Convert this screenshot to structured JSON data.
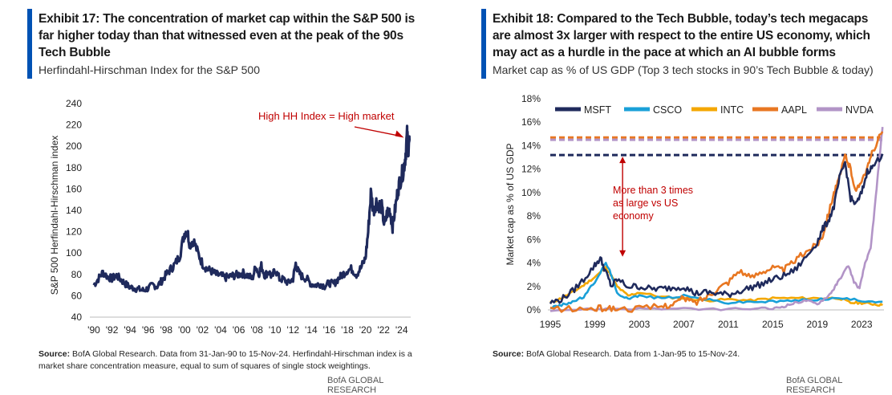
{
  "exhibit17": {
    "title": "Exhibit 17: The concentration of market cap within the S&P 500 is far higher today than that witnessed even at the peak of the 90s Tech Bubble",
    "subtitle": "Herfindahl-Hirschman Index for the S&P 500",
    "source_label": "Source:",
    "source_text": "BofA Global Research. Data from 31-Jan-90 to 15-Nov-24. Herfindahl-Hirschman index is a market share concentration measure, equal to sum of squares of single stock weightings.",
    "brand": "BofA GLOBAL RESEARCH",
    "accent_color": "#0052b4",
    "chart_data": {
      "type": "line",
      "ylabel": "S&P 500 Herfindahl-Hirschman index",
      "xlabel": "",
      "ylim": [
        40,
        240
      ],
      "yticks": [
        40,
        60,
        80,
        100,
        120,
        140,
        160,
        180,
        200,
        220,
        240
      ],
      "xlim": [
        1990,
        2025
      ],
      "xticks": [
        1990,
        1992,
        1994,
        1996,
        1998,
        2000,
        2002,
        2004,
        2006,
        2008,
        2010,
        2012,
        2014,
        2016,
        2018,
        2020,
        2022,
        2024
      ],
      "xtick_labels": [
        "'90",
        "'92",
        "'94",
        "'96",
        "'98",
        "'00",
        "'02",
        "'04",
        "'06",
        "'08",
        "'10",
        "'12",
        "'14",
        "'16",
        "'18",
        "'20",
        "'22",
        "'24"
      ],
      "grid": false,
      "annotation": {
        "text": "High HH Index = High market",
        "color": "#c00000",
        "arrow_to": [
          2024.6,
          208
        ]
      },
      "series": [
        {
          "color": "#1f2a5c",
          "x": [
            1990.0,
            1990.5,
            1991.0,
            1991.5,
            1992.0,
            1992.5,
            1993.0,
            1993.5,
            1994.0,
            1994.5,
            1995.0,
            1995.5,
            1996.0,
            1996.5,
            1997.0,
            1997.5,
            1998.0,
            1998.5,
            1999.0,
            1999.5,
            2000.0,
            2000.3,
            2000.6,
            2001.0,
            2001.5,
            2002.0,
            2002.5,
            2003.0,
            2003.5,
            2004.0,
            2004.5,
            2005.0,
            2005.5,
            2006.0,
            2006.5,
            2007.0,
            2007.5,
            2007.9,
            2008.2,
            2008.5,
            2008.9,
            2009.3,
            2009.7,
            2010.0,
            2010.5,
            2011.0,
            2011.5,
            2012.0,
            2012.3,
            2012.6,
            2013.0,
            2013.5,
            2014.0,
            2014.5,
            2015.0,
            2015.5,
            2016.0,
            2016.5,
            2017.0,
            2017.5,
            2018.0,
            2018.5,
            2019.0,
            2019.5,
            2020.0,
            2020.3,
            2020.6,
            2020.9,
            2021.2,
            2021.5,
            2021.8,
            2022.1,
            2022.4,
            2022.7,
            2023.0,
            2023.3,
            2023.6,
            2023.9,
            2024.2,
            2024.4,
            2024.6,
            2024.75,
            2024.87
          ],
          "y": [
            70,
            76,
            82,
            78,
            76,
            79,
            75,
            71,
            68,
            67,
            66,
            65,
            67,
            70,
            69,
            74,
            80,
            85,
            90,
            98,
            118,
            122,
            108,
            112,
            100,
            90,
            85,
            83,
            80,
            79,
            77,
            78,
            79,
            80,
            81,
            79,
            76,
            88,
            80,
            88,
            79,
            83,
            77,
            85,
            76,
            75,
            72,
            76,
            90,
            82,
            78,
            76,
            71,
            70,
            71,
            69,
            72,
            71,
            76,
            80,
            84,
            85,
            80,
            86,
            95,
            120,
            156,
            140,
            148,
            145,
            143,
            125,
            138,
            140,
            125,
            142,
            160,
            170,
            178,
            190,
            210,
            198,
            205
          ]
        }
      ]
    }
  },
  "exhibit18": {
    "title": "Exhibit 18: Compared to the Tech Bubble, today’s tech megacaps are almost 3x larger with respect to the entire US economy, which may act as a hurdle in the pace at which an AI bubble forms",
    "subtitle": "Market cap as % of US GDP (Top 3 tech stocks in 90’s Tech Bubble & today)",
    "source_label": "Source:",
    "source_text": "BofA Global Research. Data from 1-Jan-95 to 15-Nov-24.",
    "brand": "BofA GLOBAL RESEARCH",
    "accent_color": "#0052b4",
    "chart_data": {
      "type": "line",
      "ylabel": "Market cap as % of US GDP",
      "xlabel": "",
      "ylim": [
        0,
        18
      ],
      "yticks": [
        0,
        2,
        4,
        6,
        8,
        10,
        12,
        14,
        16,
        18
      ],
      "ytick_labels": [
        "0%",
        "2%",
        "4%",
        "6%",
        "8%",
        "10%",
        "12%",
        "14%",
        "16%",
        "18%"
      ],
      "xlim": [
        1995,
        2025
      ],
      "xticks": [
        1995,
        1999,
        2003,
        2007,
        2011,
        2015,
        2019,
        2023
      ],
      "grid": false,
      "legend_position": "top",
      "annotation": {
        "text": [
          "More than 3 times",
          "as large vs US",
          "economy"
        ],
        "color": "#c00000",
        "arrow_from_y": 13.2,
        "arrow_to_y": 4.4,
        "arrow_x": 2001.5
      },
      "reference_lines": [
        {
          "series": "MSFT",
          "y": 13.2,
          "style": "dashed"
        },
        {
          "series": "AAPL",
          "y": 14.7,
          "style": "dashed"
        },
        {
          "series": "NVDA",
          "y": 14.5,
          "style": "dashed"
        }
      ],
      "series": [
        {
          "name": "MSFT",
          "color": "#1f2a5c",
          "x": [
            1995,
            1996,
            1997,
            1998,
            1999,
            1999.5,
            2000,
            2000.5,
            2001,
            2002,
            2003,
            2004,
            2005,
            2006,
            2007,
            2008,
            2009,
            2010,
            2011,
            2012,
            2013,
            2014,
            2015,
            2016,
            2017,
            2018,
            2019,
            2019.5,
            2020,
            2020.5,
            2021,
            2021.5,
            2022,
            2022.5,
            2023,
            2023.5,
            2024,
            2024.87
          ],
          "y": [
            0.6,
            0.9,
            1.6,
            2.6,
            3.8,
            4.4,
            3.2,
            2.0,
            2.6,
            2.0,
            2.0,
            1.8,
            1.8,
            1.9,
            2.0,
            1.4,
            1.5,
            1.4,
            1.3,
            1.6,
            1.9,
            2.2,
            2.6,
            2.9,
            3.4,
            4.5,
            5.8,
            6.9,
            7.6,
            8.8,
            11.2,
            12.6,
            9.5,
            9.0,
            10.0,
            11.8,
            12.2,
            13.3
          ]
        },
        {
          "name": "CSCO",
          "color": "#1aa0d8",
          "x": [
            1995,
            1996,
            1997,
            1998,
            1999,
            2000,
            2000.5,
            2001,
            2002,
            2003,
            2005,
            2007,
            2009,
            2011,
            2013,
            2015,
            2017,
            2019,
            2021,
            2023,
            2024.87
          ],
          "y": [
            0.2,
            0.4,
            0.7,
            1.1,
            2.4,
            4.0,
            3.0,
            1.4,
            1.0,
            1.2,
            1.0,
            1.2,
            0.9,
            0.6,
            0.7,
            0.7,
            0.8,
            0.9,
            1.0,
            0.8,
            0.7
          ]
        },
        {
          "name": "INTC",
          "color": "#f4a700",
          "x": [
            1995,
            1996,
            1997,
            1998,
            1999,
            2000,
            2000.5,
            2001,
            2002,
            2003,
            2005,
            2007,
            2009,
            2011,
            2013,
            2015,
            2017,
            2019,
            2021,
            2022,
            2023,
            2024,
            2024.87
          ],
          "y": [
            0.6,
            1.0,
            1.5,
            2.1,
            2.8,
            3.6,
            2.9,
            2.0,
            1.2,
            1.5,
            1.1,
            1.0,
            0.8,
            0.9,
            0.8,
            1.0,
            1.0,
            1.0,
            1.0,
            0.6,
            0.6,
            0.5,
            0.4
          ]
        },
        {
          "name": "AAPL",
          "color": "#e87722",
          "x": [
            1995,
            1997,
            1999,
            2000,
            2001,
            2003,
            2005,
            2006,
            2007,
            2008,
            2009,
            2010,
            2011,
            2012,
            2013,
            2014,
            2015,
            2016,
            2017,
            2018,
            2019,
            2019.5,
            2020,
            2020.5,
            2021,
            2021.5,
            2022,
            2022.5,
            2023,
            2023.5,
            2024,
            2024.87
          ],
          "y": [
            0.1,
            0.05,
            0.1,
            0.15,
            0.1,
            0.1,
            0.3,
            0.5,
            1.0,
            0.6,
            1.1,
            1.8,
            2.4,
            3.4,
            2.7,
            3.3,
            3.6,
            3.4,
            4.2,
            5.0,
            5.6,
            6.4,
            8.2,
            10.0,
            11.2,
            13.2,
            12.0,
            10.0,
            11.2,
            12.0,
            13.6,
            15.2
          ]
        },
        {
          "name": "NVDA",
          "color": "#b294c7",
          "x": [
            1995,
            1999,
            2001,
            2005,
            2009,
            2013,
            2015,
            2016,
            2017,
            2018,
            2019,
            2020,
            2020.5,
            2021,
            2021.8,
            2022.3,
            2022.8,
            2023.3,
            2023.8,
            2024.2,
            2024.6,
            2024.87
          ],
          "y": [
            0.0,
            0.05,
            0.1,
            0.1,
            0.05,
            0.1,
            0.1,
            0.3,
            0.6,
            0.8,
            0.5,
            1.2,
            1.8,
            2.6,
            3.8,
            2.4,
            1.8,
            4.0,
            5.2,
            9.0,
            13.0,
            15.6
          ]
        }
      ]
    }
  }
}
